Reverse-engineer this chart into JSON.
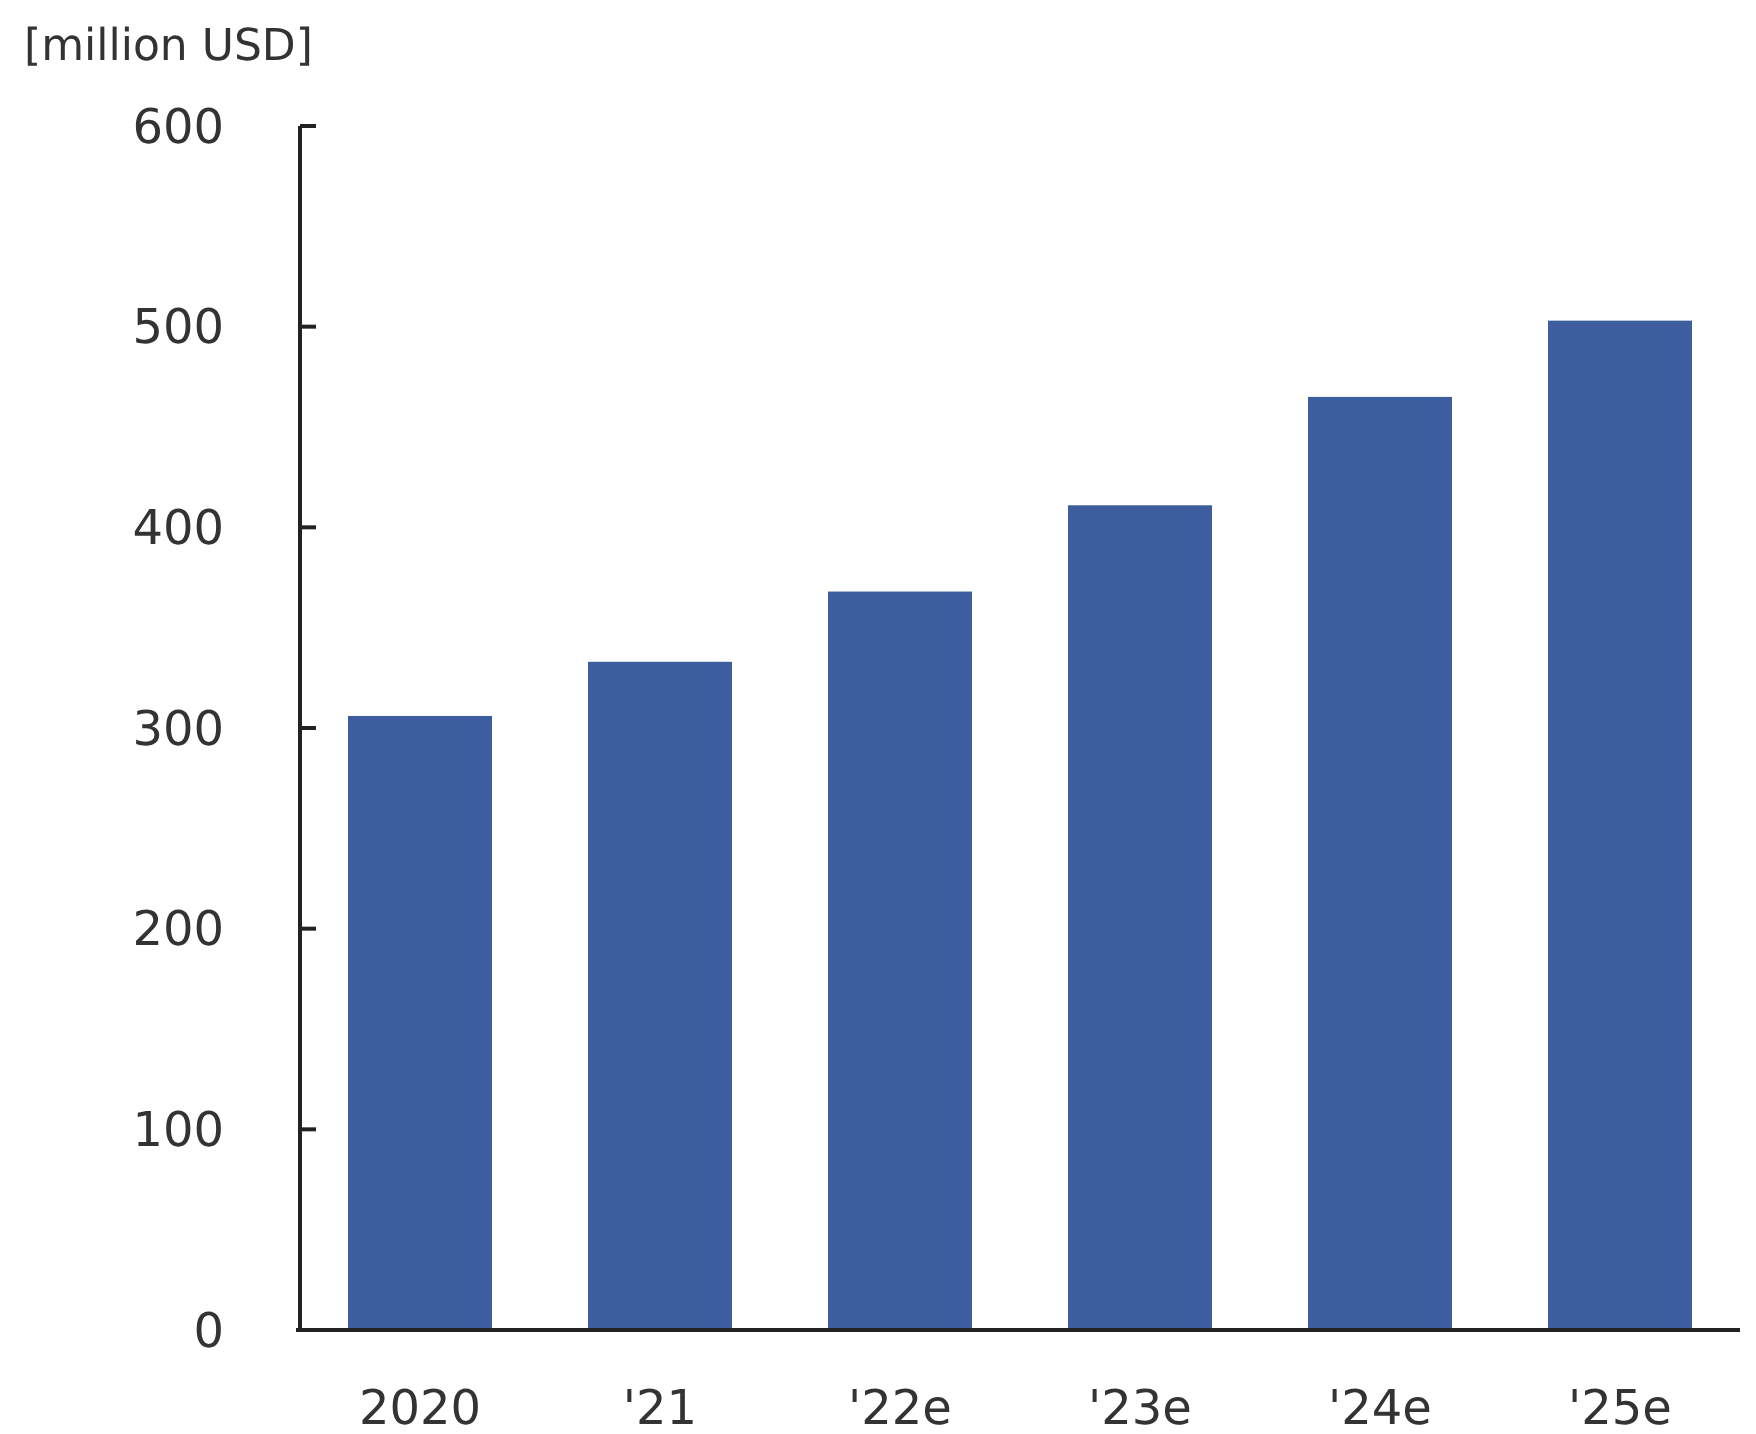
{
  "chart_data": {
    "type": "bar",
    "ylabel": "[million USD]",
    "categories": [
      "2020",
      "'21",
      "'22e",
      "'23e",
      "'24e",
      "'25e"
    ],
    "values": [
      306,
      333,
      368,
      411,
      465,
      503
    ],
    "color": "#3c5e9e",
    "ylim": [
      0,
      600
    ],
    "yticks": [
      0,
      100,
      200,
      300,
      400,
      500,
      600
    ],
    "grid": false
  }
}
